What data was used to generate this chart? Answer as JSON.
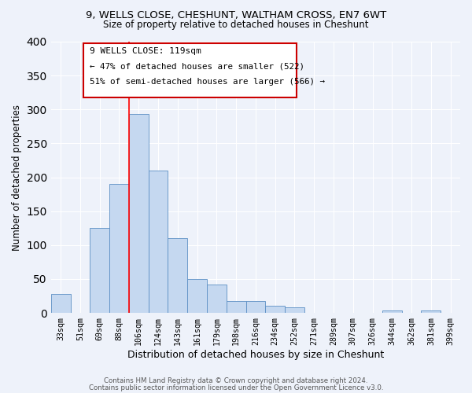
{
  "title1": "9, WELLS CLOSE, CHESHUNT, WALTHAM CROSS, EN7 6WT",
  "title2": "Size of property relative to detached houses in Cheshunt",
  "xlabel": "Distribution of detached houses by size in Cheshunt",
  "ylabel": "Number of detached properties",
  "bar_color": "#c5d8f0",
  "bar_edge_color": "#5b8ec4",
  "bg_color": "#eef2fa",
  "grid_color": "#ffffff",
  "categories": [
    "33sqm",
    "51sqm",
    "69sqm",
    "88sqm",
    "106sqm",
    "124sqm",
    "143sqm",
    "161sqm",
    "179sqm",
    "198sqm",
    "216sqm",
    "234sqm",
    "252sqm",
    "271sqm",
    "289sqm",
    "307sqm",
    "326sqm",
    "344sqm",
    "362sqm",
    "381sqm",
    "399sqm"
  ],
  "values": [
    28,
    0,
    125,
    190,
    293,
    210,
    110,
    50,
    42,
    18,
    18,
    10,
    8,
    0,
    0,
    0,
    0,
    3,
    0,
    3,
    0
  ],
  "ylim": [
    0,
    400
  ],
  "yticks": [
    0,
    50,
    100,
    150,
    200,
    250,
    300,
    350,
    400
  ],
  "property_line_label": "9 WELLS CLOSE: 119sqm",
  "annotation_line2": "← 47% of detached houses are smaller (522)",
  "annotation_line3": "51% of semi-detached houses are larger (566) →",
  "footer1": "Contains HM Land Registry data © Crown copyright and database right 2024.",
  "footer2": "Contains public sector information licensed under the Open Government Licence v3.0."
}
